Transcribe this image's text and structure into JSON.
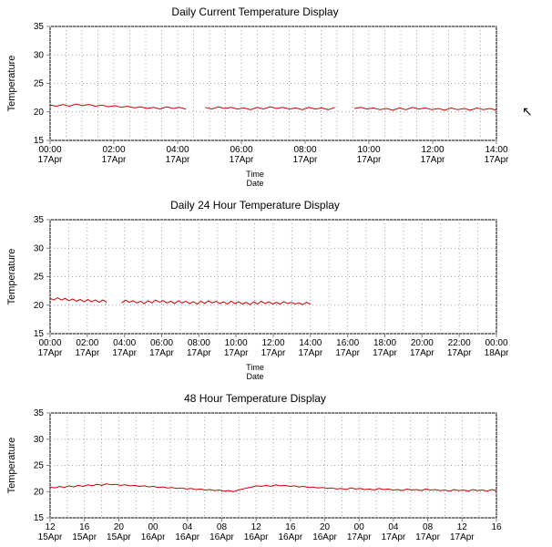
{
  "background_color": "#ffffff",
  "text_color": "#000000",
  "grid_color": "#a0a0a0",
  "frame_color": "#000000",
  "cursor_glyph": "↱",
  "chart1": {
    "type": "line",
    "title": "Daily Current Temperature Display",
    "ylabel": "Temperature",
    "xlabel_top": "Time",
    "xlabel_bottom": "Date",
    "ylim": [
      15,
      35
    ],
    "ytick_step": 5,
    "x_ticks": [
      "00:00",
      "02:00",
      "04:00",
      "06:00",
      "08:00",
      "10:00",
      "12:00",
      "14:00"
    ],
    "x_ticks2": [
      "17Apr",
      "17Apr",
      "17Apr",
      "17Apr",
      "17Apr",
      "17Apr",
      "17Apr",
      "17Apr"
    ],
    "x_minor_between": 3,
    "series_color": "#cc0000",
    "title_fontsize": 12,
    "label_fontsize": 10,
    "line_width": 1,
    "values": [
      21.2,
      21.0,
      21.3,
      21.0,
      21.4,
      21.1,
      21.3,
      21.0,
      21.2,
      20.9,
      21.1,
      20.8,
      21.0,
      20.7,
      20.9,
      20.6,
      20.8,
      20.5,
      20.9,
      20.6,
      20.8,
      20.5,
      20.7,
      20.4,
      20.8,
      20.5,
      20.9,
      20.6,
      20.8,
      20.5,
      20.7,
      20.4,
      20.8,
      20.5,
      20.9,
      20.6,
      20.8,
      20.5,
      20.7,
      20.4,
      20.8,
      20.5,
      20.7,
      20.4,
      20.8,
      20.5,
      20.9,
      20.6,
      20.8,
      20.5,
      20.7,
      20.4,
      20.6,
      20.3,
      20.7,
      20.4,
      20.8,
      20.5,
      20.7,
      20.4,
      20.6,
      20.3,
      20.7,
      20.4,
      20.6,
      20.3,
      20.7,
      20.4,
      20.6,
      20.3
    ],
    "gaps": [
      [
        22,
        23
      ],
      [
        45,
        46
      ]
    ]
  },
  "chart2": {
    "type": "line",
    "title": "Daily 24 Hour Temperature Display",
    "ylabel": "Temperature",
    "xlabel_top": "Time",
    "xlabel_bottom": "Date",
    "ylim": [
      15,
      35
    ],
    "ytick_step": 5,
    "x_ticks": [
      "00:00",
      "02:00",
      "04:00",
      "06:00",
      "08:00",
      "10:00",
      "12:00",
      "14:00",
      "16:00",
      "18:00",
      "20:00",
      "22:00",
      "00:00"
    ],
    "x_ticks2": [
      "17Apr",
      "17Apr",
      "17Apr",
      "17Apr",
      "17Apr",
      "17Apr",
      "17Apr",
      "17Apr",
      "17Apr",
      "17Apr",
      "17Apr",
      "17Apr",
      "18Apr"
    ],
    "x_minor_between": 1,
    "series_color": "#cc0000",
    "title_fontsize": 12,
    "label_fontsize": 10,
    "line_width": 1,
    "x_data_extent": 0.583,
    "values": [
      21.2,
      20.9,
      21.3,
      20.9,
      21.2,
      20.8,
      21.1,
      20.7,
      21.0,
      20.6,
      21.0,
      20.6,
      20.9,
      20.5,
      20.9,
      20.5,
      20.8,
      20.4,
      20.8,
      20.4,
      20.9,
      20.5,
      20.8,
      20.4,
      20.7,
      20.3,
      20.8,
      20.4,
      20.9,
      20.5,
      20.8,
      20.4,
      20.7,
      20.3,
      20.8,
      20.4,
      20.7,
      20.3,
      20.6,
      20.2,
      20.7,
      20.3,
      20.8,
      20.4,
      20.7,
      20.3,
      20.6,
      20.2,
      20.7,
      20.3,
      20.6,
      20.2,
      20.5,
      20.1,
      20.6,
      20.2,
      20.7,
      20.3,
      20.6,
      20.2,
      20.5,
      20.2,
      20.6,
      20.3,
      20.5,
      20.2,
      20.4,
      20.1,
      20.5,
      20.2
    ],
    "gaps": [
      [
        16,
        18
      ]
    ]
  },
  "chart3": {
    "type": "line",
    "title": "48 Hour Temperature Display",
    "ylabel": "Temperature",
    "xlabel_top": "",
    "xlabel_bottom": "",
    "ylim": [
      15,
      35
    ],
    "ytick_step": 5,
    "x_ticks": [
      "12",
      "16",
      "20",
      "00",
      "04",
      "08",
      "12",
      "16",
      "20",
      "00",
      "04",
      "08",
      "12",
      "16"
    ],
    "x_ticks2": [
      "15Apr",
      "15Apr",
      "15Apr",
      "16Apr",
      "16Apr",
      "16Apr",
      "16Apr",
      "16Apr",
      "16Apr",
      "17Apr",
      "17Apr",
      "17Apr",
      "17Apr",
      ""
    ],
    "x_minor_between": 1,
    "series_color": "#cc0000",
    "title_fontsize": 12,
    "label_fontsize": 10,
    "line_width": 1,
    "values": [
      20.9,
      20.7,
      21.0,
      20.8,
      21.1,
      20.9,
      21.2,
      21.0,
      21.3,
      21.1,
      21.4,
      21.2,
      21.5,
      21.3,
      21.4,
      21.2,
      21.3,
      21.1,
      21.2,
      21.0,
      21.1,
      20.9,
      21.0,
      20.8,
      20.9,
      20.7,
      20.8,
      20.6,
      20.7,
      20.5,
      20.6,
      20.4,
      20.5,
      20.3,
      20.4,
      20.2,
      20.3,
      20.1,
      20.2,
      20.0,
      20.3,
      20.5,
      20.7,
      20.9,
      21.1,
      21.0,
      21.2,
      21.0,
      21.3,
      21.1,
      21.2,
      21.0,
      21.1,
      20.9,
      21.0,
      20.8,
      20.9,
      20.7,
      20.8,
      20.6,
      20.7,
      20.5,
      20.6,
      20.4,
      20.7,
      20.5,
      20.6,
      20.4,
      20.5,
      20.3,
      20.6,
      20.4,
      20.5,
      20.3,
      20.4,
      20.2,
      20.5,
      20.3,
      20.4,
      20.2,
      20.5,
      20.3,
      20.4,
      20.2,
      20.3,
      20.1,
      20.4,
      20.2,
      20.3,
      20.1,
      20.4,
      20.2,
      20.3,
      20.1,
      20.4,
      20.2
    ],
    "gaps": []
  }
}
